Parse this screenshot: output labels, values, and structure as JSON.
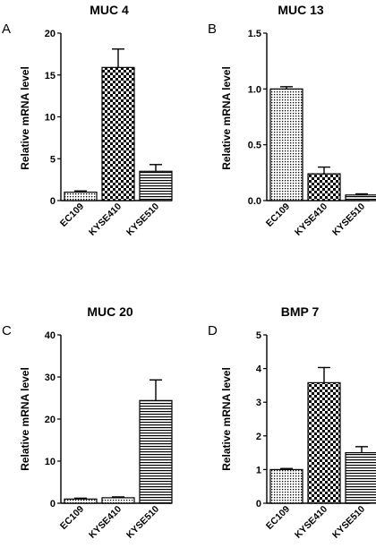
{
  "panels": [
    {
      "letter": "A",
      "chart_data": {
        "type": "bar",
        "title": "MUC 4",
        "ylabel": "Relative mRNA level",
        "xlabel": "",
        "categories": [
          "EC109",
          "KYSE410",
          "KYSE510"
        ],
        "values": [
          1.0,
          15.9,
          3.5
        ],
        "errors": [
          0.15,
          2.2,
          0.8
        ],
        "patterns": [
          "fine-dots",
          "checker",
          "horizontal-lines"
        ],
        "ylim": [
          0,
          20
        ],
        "yticks": [
          "0",
          "5",
          "10",
          "15",
          "20"
        ]
      }
    },
    {
      "letter": "B",
      "chart_data": {
        "type": "bar",
        "title": "MUC 13",
        "ylabel": "Relative mRNA level",
        "xlabel": "",
        "categories": [
          "EC109",
          "KYSE410",
          "KYSE510"
        ],
        "values": [
          1.0,
          0.24,
          0.05
        ],
        "errors": [
          0.02,
          0.06,
          0.01
        ],
        "patterns": [
          "fine-dots",
          "checker",
          "horizontal-lines"
        ],
        "ylim": [
          0,
          1.5
        ],
        "yticks": [
          "0.0",
          "0.5",
          "1.0",
          "1.5"
        ]
      }
    },
    {
      "letter": "C",
      "chart_data": {
        "type": "bar",
        "title": "MUC 20",
        "ylabel": "Relative mRNA level",
        "xlabel": "",
        "categories": [
          "EC109",
          "KYSE410",
          "KYSE510"
        ],
        "values": [
          1.0,
          1.3,
          24.4
        ],
        "errors": [
          0.2,
          0.2,
          4.9
        ],
        "patterns": [
          "fine-dots",
          "fine-dots",
          "horizontal-lines"
        ],
        "ylim": [
          0,
          40
        ],
        "yticks": [
          "0",
          "10",
          "20",
          "30",
          "40"
        ]
      }
    },
    {
      "letter": "D",
      "chart_data": {
        "type": "bar",
        "title": "BMP 7",
        "ylabel": "Relative mRNA level",
        "xlabel": "",
        "categories": [
          "EC109",
          "KYSE410",
          "KYSE510"
        ],
        "values": [
          1.0,
          3.58,
          1.5
        ],
        "errors": [
          0.03,
          0.45,
          0.18
        ],
        "patterns": [
          "fine-dots",
          "checker",
          "horizontal-lines"
        ],
        "ylim": [
          0,
          5
        ],
        "yticks": [
          "0",
          "1",
          "2",
          "3",
          "4",
          "5"
        ]
      }
    }
  ]
}
